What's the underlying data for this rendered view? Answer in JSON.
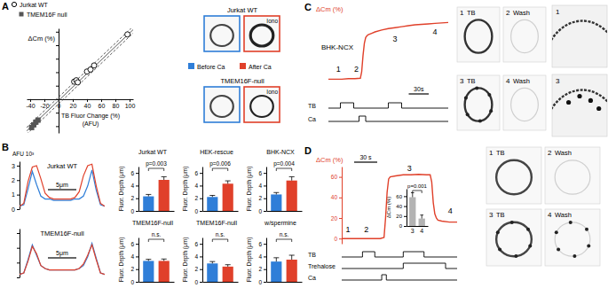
{
  "chart_data": [
    {
      "type": "scatter",
      "xlabel": [
        "TB Fluor Change (%)",
        "(AFU)"
      ],
      "ylabel": "ΔCm (%)",
      "legend": "top-left",
      "xlim": [
        -45,
        105
      ],
      "ylim": [
        -50,
        105
      ],
      "xticks": [
        -40,
        -20,
        0,
        20,
        40,
        60,
        80,
        100
      ],
      "yticks": [
        -40,
        -20,
        0,
        20,
        40,
        60,
        80,
        100
      ],
      "tick_labels": "x",
      "series": [
        {
          "name": "Jurkat WT",
          "marker": "circle-open",
          "color": "#000000",
          "x": [
            22,
            25,
            27,
            40,
            45,
            50,
            97
          ],
          "values": [
            26,
            28,
            25,
            41,
            44,
            50,
            96
          ]
        },
        {
          "name": "TMEM16F null",
          "marker": "square",
          "color": "#555555",
          "x": [
            -29,
            -32,
            -35,
            -38
          ],
          "values": [
            -31,
            -34,
            -38,
            -42
          ]
        }
      ],
      "fit": {
        "x": [
          -45,
          105
        ],
        "values": [
          -47,
          103
        ],
        "ci_low": [
          -52,
          98
        ],
        "ci_high": [
          -42,
          108
        ]
      }
    },
    {
      "type": "line",
      "title": "Jurkat WT",
      "ylabel": "AFU 10³",
      "x": [
        0,
        0.75,
        1.5,
        2.25,
        3,
        3.75,
        4.5,
        5.25,
        6,
        6.75,
        7.5,
        8.25,
        9,
        9.75,
        10.5,
        11.25,
        12,
        12.75,
        13.5,
        14.25,
        15
      ],
      "series": [
        {
          "color": "#2f7ed8",
          "values": [
            0.2,
            0.3,
            1.4,
            2.6,
            1.7,
            0.9,
            0.7,
            0.7,
            0.6,
            0.6,
            0.6,
            0.6,
            0.6,
            0.7,
            0.7,
            0.9,
            1.6,
            2.7,
            1.3,
            0.3,
            0.2
          ]
        },
        {
          "color": "#e0402a",
          "values": [
            0.2,
            0.4,
            1.9,
            2.9,
            3.0,
            2.1,
            1.1,
            0.8,
            0.7,
            0.7,
            0.7,
            0.7,
            0.7,
            0.8,
            1.2,
            2.3,
            3.0,
            3.1,
            1.6,
            0.4,
            0.2
          ]
        }
      ],
      "xlim": [
        0,
        15
      ],
      "ylim": [
        0,
        3.3
      ],
      "yticks": [
        0,
        1,
        2,
        3
      ],
      "tick_labels": "y",
      "scale_bar": {
        "value": 5,
        "label": "5μm"
      }
    },
    {
      "type": "line",
      "title": "TMEM16F-null",
      "x": [
        0,
        0.75,
        1.5,
        2.25,
        3,
        3.75,
        4.5,
        5.25,
        6,
        6.75,
        7.5,
        8.25,
        9,
        9.75,
        10.5,
        11.25,
        12,
        12.75,
        13.5,
        14.25,
        15
      ],
      "series": [
        {
          "color": "#2f7ed8",
          "values": [
            0.2,
            0.3,
            1.2,
            2.2,
            1.5,
            0.8,
            0.6,
            0.5,
            0.5,
            0.5,
            0.5,
            0.5,
            0.5,
            0.5,
            0.6,
            0.8,
            1.4,
            2.3,
            1.3,
            0.3,
            0.2
          ]
        },
        {
          "color": "#e0402a",
          "values": [
            0.2,
            0.3,
            1.1,
            2.1,
            1.6,
            0.8,
            0.6,
            0.5,
            0.5,
            0.5,
            0.5,
            0.5,
            0.5,
            0.5,
            0.6,
            0.9,
            1.5,
            2.2,
            1.2,
            0.3,
            0.2
          ]
        }
      ],
      "xlim": [
        0,
        15
      ],
      "ylim": [
        0,
        3.3
      ],
      "yticks": [
        0,
        1,
        2,
        3
      ],
      "tick_labels": false,
      "scale_bar": {
        "value": 5,
        "label": "5μm"
      }
    },
    {
      "type": "bar",
      "title": "Jurkat WT",
      "ylabel": "Fluor. Depth (μm)",
      "categories": [
        null,
        null
      ],
      "values": [
        2.3,
        4.9
      ],
      "errors": [
        0.3,
        0.5
      ],
      "colors": [
        "#2f7ed8",
        "#e0402a"
      ],
      "ylim": [
        0,
        7
      ],
      "yticks": [
        0,
        2,
        4,
        6
      ],
      "tick_labels": "y",
      "annotation": "p=0.003"
    },
    {
      "type": "bar",
      "title": "HEK-rescue",
      "ylabel": "Fluor. Depth (μm)",
      "categories": [
        null,
        null
      ],
      "values": [
        2.2,
        4.3
      ],
      "errors": [
        0.25,
        0.45
      ],
      "colors": [
        "#2f7ed8",
        "#e0402a"
      ],
      "ylim": [
        0,
        7
      ],
      "yticks": [
        0,
        2,
        4,
        6
      ],
      "tick_labels": "y",
      "annotation": "p=0.006"
    },
    {
      "type": "bar",
      "title": "BHK-NCX",
      "ylabel": "Fluor. Depth (μm)",
      "categories": [
        null,
        null
      ],
      "values": [
        2.6,
        4.8
      ],
      "errors": [
        0.3,
        0.6
      ],
      "colors": [
        "#2f7ed8",
        "#e0402a"
      ],
      "ylim": [
        0,
        7
      ],
      "yticks": [
        0,
        2,
        4,
        6
      ],
      "tick_labels": "y",
      "annotation": "p=0.004"
    },
    {
      "type": "bar",
      "title": "TMEM16F-null",
      "ylabel": "Fluor. Depth (μm)",
      "categories": [
        null,
        null
      ],
      "values": [
        3.3,
        3.3
      ],
      "errors": [
        0.25,
        0.3
      ],
      "colors": [
        "#2f7ed8",
        "#e0402a"
      ],
      "ylim": [
        0,
        7
      ],
      "yticks": [
        0,
        2,
        4,
        6
      ],
      "tick_labels": "y",
      "annotation": "n.s."
    },
    {
      "type": "bar",
      "title": "TMEM16F-null",
      "ylabel": "Fluor. Depth (μm)",
      "categories": [
        null,
        null
      ],
      "values": [
        2.9,
        2.4
      ],
      "errors": [
        0.3,
        0.3
      ],
      "colors": [
        "#2f7ed8",
        "#e0402a"
      ],
      "ylim": [
        0,
        7
      ],
      "yticks": [
        0,
        2,
        4,
        6
      ],
      "tick_labels": "y",
      "annotation": "n.s."
    },
    {
      "type": "bar",
      "title": "w/spermine",
      "ylabel": "Fluor. Depth (μm)",
      "categories": [
        null,
        null
      ],
      "values": [
        3.2,
        3.5
      ],
      "errors": [
        0.6,
        0.7
      ],
      "colors": [
        "#2f7ed8",
        "#e0402a"
      ],
      "ylim": [
        0,
        7
      ],
      "yticks": [
        0,
        2,
        4,
        6
      ],
      "tick_labels": "y",
      "annotation": "n.s."
    },
    {
      "type": "line",
      "title": "BHK-NCX",
      "ylabel": "ΔCm (%)",
      "color": "#e0402a",
      "x": [
        0,
        10,
        20,
        30,
        40,
        48,
        50,
        52,
        54,
        56,
        58,
        60,
        65,
        70,
        80,
        90,
        100,
        110,
        120,
        130,
        140,
        150,
        160,
        170,
        180
      ],
      "values": [
        0,
        0,
        0,
        0.5,
        0.5,
        1,
        8,
        25,
        38,
        44,
        46,
        47,
        48.5,
        50,
        52,
        53.5,
        54.5,
        55.5,
        56.5,
        57.5,
        58,
        58.5,
        59,
        59.5,
        60
      ],
      "xlim": [
        0,
        180
      ],
      "ylim": [
        -10,
        65
      ],
      "tick_labels": false,
      "scale_bar": {
        "value": 30,
        "label": "30s"
      },
      "annotations": [
        {
          "text": "1",
          "x": 15,
          "y": 8
        },
        {
          "text": "2",
          "x": 42,
          "y": 8
        },
        {
          "text": "3",
          "x": 100,
          "y": 40
        },
        {
          "text": "4",
          "x": 160,
          "y": 47
        }
      ],
      "protocols": [
        {
          "name": "TB",
          "on": [
            [
              18,
              38
            ],
            [
              90,
              110
            ]
          ]
        },
        {
          "name": "Ca",
          "on": [
            [
              46,
              56
            ]
          ]
        }
      ]
    },
    {
      "type": "line",
      "ylabel": "ΔCm (%)",
      "color": "#e0402a",
      "x": [
        0,
        10,
        20,
        30,
        40,
        50,
        55,
        57,
        59,
        61,
        63,
        70,
        80,
        90,
        100,
        110,
        115,
        117,
        119,
        121,
        123,
        125,
        130,
        140,
        150
      ],
      "values": [
        0,
        0,
        0,
        0,
        0,
        0,
        1,
        20,
        45,
        58,
        60,
        61,
        62,
        62,
        62.5,
        62,
        62,
        55,
        35,
        24,
        20,
        18,
        17,
        16,
        16
      ],
      "xlim": [
        0,
        150
      ],
      "ylim": [
        -5,
        70
      ],
      "yticks": [
        0,
        20,
        40,
        60
      ],
      "tick_labels": "y",
      "scale_bar": {
        "value": 30,
        "label": "30 s"
      },
      "annotations": [
        {
          "text": "1",
          "x": 8,
          "y": 6
        },
        {
          "text": "2",
          "x": 32,
          "y": 6
        },
        {
          "text": "3",
          "x": 88,
          "y": 66
        },
        {
          "text": "4",
          "x": 141,
          "y": 24
        }
      ],
      "protocols": [
        {
          "name": "TB",
          "on": [
            [
              27,
              43
            ],
            [
              80,
              107
            ]
          ]
        },
        {
          "name": "Trehalose",
          "on": [
            [
              80,
              135
            ]
          ]
        },
        {
          "name": "Ca",
          "on": [
            [
              52,
              58
            ]
          ]
        }
      ]
    },
    {
      "type": "bar",
      "ylabel": "ΔCm (%)",
      "categories": [
        "3",
        "4"
      ],
      "values": [
        58,
        15
      ],
      "errors": [
        9,
        7
      ],
      "color": "#b3b3b3",
      "ylim": [
        0,
        75
      ],
      "yticks": [
        0,
        20,
        40,
        60
      ],
      "tick_labels": "y",
      "annotation": "p=0.001"
    }
  ],
  "figure": {
    "panel_labels": [
      "A",
      "B",
      "C",
      "D"
    ],
    "image_legend": [
      {
        "name": "Before Ca",
        "color": "#2f7ed8"
      },
      {
        "name": "After Ca",
        "color": "#e0402a"
      }
    ],
    "image_rows": [
      {
        "title": "Jurkat WT",
        "after_label": "Iono"
      },
      {
        "title": "TMEM16F-null",
        "after_label": "Iono"
      }
    ],
    "C_images": [
      {
        "number": "1",
        "label": "TB"
      },
      {
        "number": "2",
        "label": "Wash"
      },
      {
        "number": "3",
        "label": "TB"
      },
      {
        "number": "4",
        "label": "Wash"
      }
    ],
    "C_zooms": [
      "1",
      "3"
    ],
    "D_images": [
      {
        "number": "1",
        "label": "TB"
      },
      {
        "number": "2",
        "label": "Wash"
      },
      {
        "number": "3",
        "label": "TB"
      },
      {
        "number": "4",
        "label": "Wash"
      }
    ]
  }
}
